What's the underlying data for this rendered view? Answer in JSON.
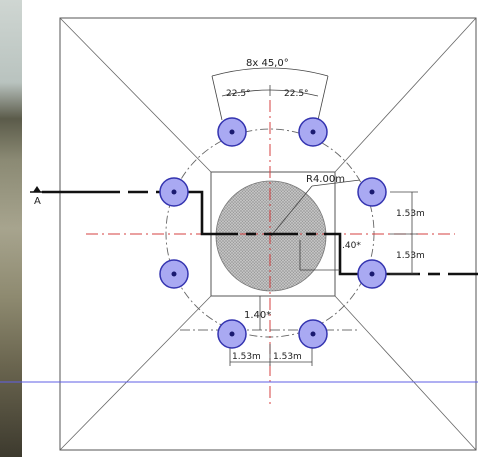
{
  "drawing": {
    "section_mark": "A",
    "angle_total": "8x 45,0°",
    "angle_left": "22.5°",
    "angle_right": "22.5°",
    "radius_label": "R4.00m",
    "dim_right_upper": "1.53m",
    "dim_right_lower": "1.53m",
    "dim_mid_right": ".40*",
    "dim_bottom_offset": "1.40*",
    "dim_bottom_left": "1.53m",
    "dim_bottom_right": "1.53m"
  },
  "colors": {
    "pile_fill": "#a9a9f2",
    "pile_stroke": "#3434b0",
    "axis_red": "#d44040",
    "section_line": "#111111",
    "blue_line": "#5f5fe6",
    "core_fill": "#b8b8b8"
  },
  "piles": {
    "count": 8
  }
}
